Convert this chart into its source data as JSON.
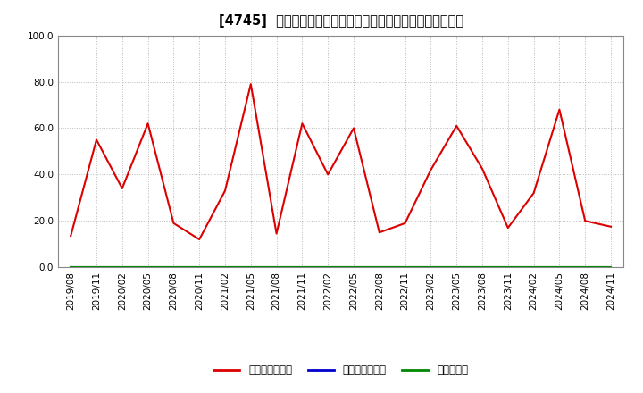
{
  "title": "[4745]  売上債権回転率、買入債務回転率、在庫回転率の推移",
  "x_labels": [
    "2019/08",
    "2019/11",
    "2020/02",
    "2020/05",
    "2020/08",
    "2020/11",
    "2021/02",
    "2021/05",
    "2021/08",
    "2021/11",
    "2022/02",
    "2022/05",
    "2022/08",
    "2022/11",
    "2023/02",
    "2023/05",
    "2023/08",
    "2023/11",
    "2024/02",
    "2024/05",
    "2024/08",
    "2024/11"
  ],
  "series": [
    {
      "name": "売上債権回転率",
      "color": "#dd0000",
      "values": [
        13.5,
        55.0,
        34.0,
        62.0,
        19.0,
        12.0,
        33.0,
        79.0,
        14.5,
        62.0,
        40.0,
        60.0,
        15.0,
        19.0,
        42.0,
        61.0,
        42.5,
        17.0,
        32.0,
        68.0,
        20.0,
        17.5
      ]
    },
    {
      "name": "買入債務回転率",
      "color": "#0000cc",
      "values": [
        0.0,
        0.0,
        0.0,
        0.0,
        0.0,
        0.0,
        0.0,
        0.0,
        0.0,
        0.0,
        0.0,
        0.0,
        0.0,
        0.0,
        0.0,
        0.0,
        0.0,
        0.0,
        0.0,
        0.0,
        0.0,
        0.0
      ]
    },
    {
      "name": "在庫回転率",
      "color": "#008800",
      "values": [
        0.0,
        0.0,
        0.0,
        0.0,
        0.0,
        0.0,
        0.0,
        0.0,
        0.0,
        0.0,
        0.0,
        0.0,
        0.0,
        0.0,
        0.0,
        0.0,
        0.0,
        0.0,
        0.0,
        0.0,
        0.0,
        0.0
      ]
    }
  ],
  "ylim": [
    0.0,
    100.0
  ],
  "yticks": [
    0.0,
    20.0,
    40.0,
    60.0,
    80.0,
    100.0
  ],
  "background_color": "#ffffff",
  "plot_bg_color": "#ffffff",
  "grid_color": "#bbbbbb",
  "title_fontsize": 10.5,
  "tick_fontsize": 7.5,
  "legend_fontsize": 8.5
}
